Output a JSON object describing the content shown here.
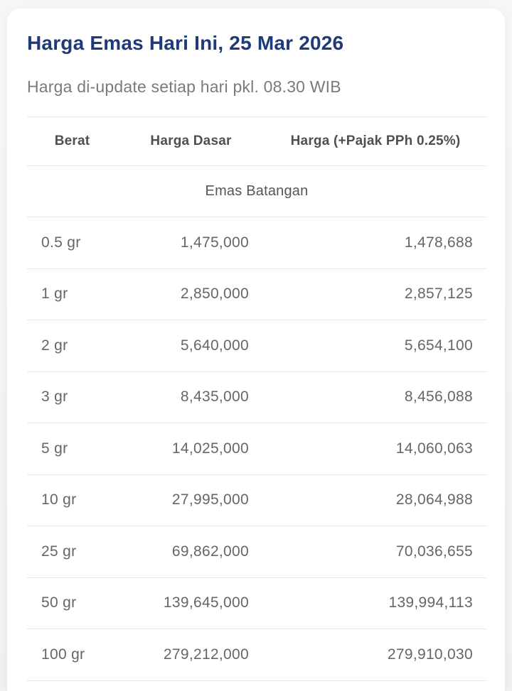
{
  "card": {
    "title": "Harga Emas Hari Ini, 25 Mar 2026",
    "subtitle": "Harga di-update setiap hari pkl. 08.30 WIB",
    "title_color": "#1e3a78"
  },
  "table": {
    "columns": [
      "Berat",
      "Harga Dasar",
      "Harga (+Pajak PPh 0.25%)"
    ],
    "section": "Emas Batangan",
    "rows": [
      {
        "berat": "0.5 gr",
        "harga_dasar": "1,475,000",
        "harga_pajak": "1,478,688"
      },
      {
        "berat": "1 gr",
        "harga_dasar": "2,850,000",
        "harga_pajak": "2,857,125"
      },
      {
        "berat": "2 gr",
        "harga_dasar": "5,640,000",
        "harga_pajak": "5,654,100"
      },
      {
        "berat": "3 gr",
        "harga_dasar": "8,435,000",
        "harga_pajak": "8,456,088"
      },
      {
        "berat": "5 gr",
        "harga_dasar": "14,025,000",
        "harga_pajak": "14,060,063"
      },
      {
        "berat": "10 gr",
        "harga_dasar": "27,995,000",
        "harga_pajak": "28,064,988"
      },
      {
        "berat": "25 gr",
        "harga_dasar": "69,862,000",
        "harga_pajak": "70,036,655"
      },
      {
        "berat": "50 gr",
        "harga_dasar": "139,645,000",
        "harga_pajak": "139,994,113"
      },
      {
        "berat": "100 gr",
        "harga_dasar": "279,212,000",
        "harga_pajak": "279,910,030"
      }
    ]
  }
}
